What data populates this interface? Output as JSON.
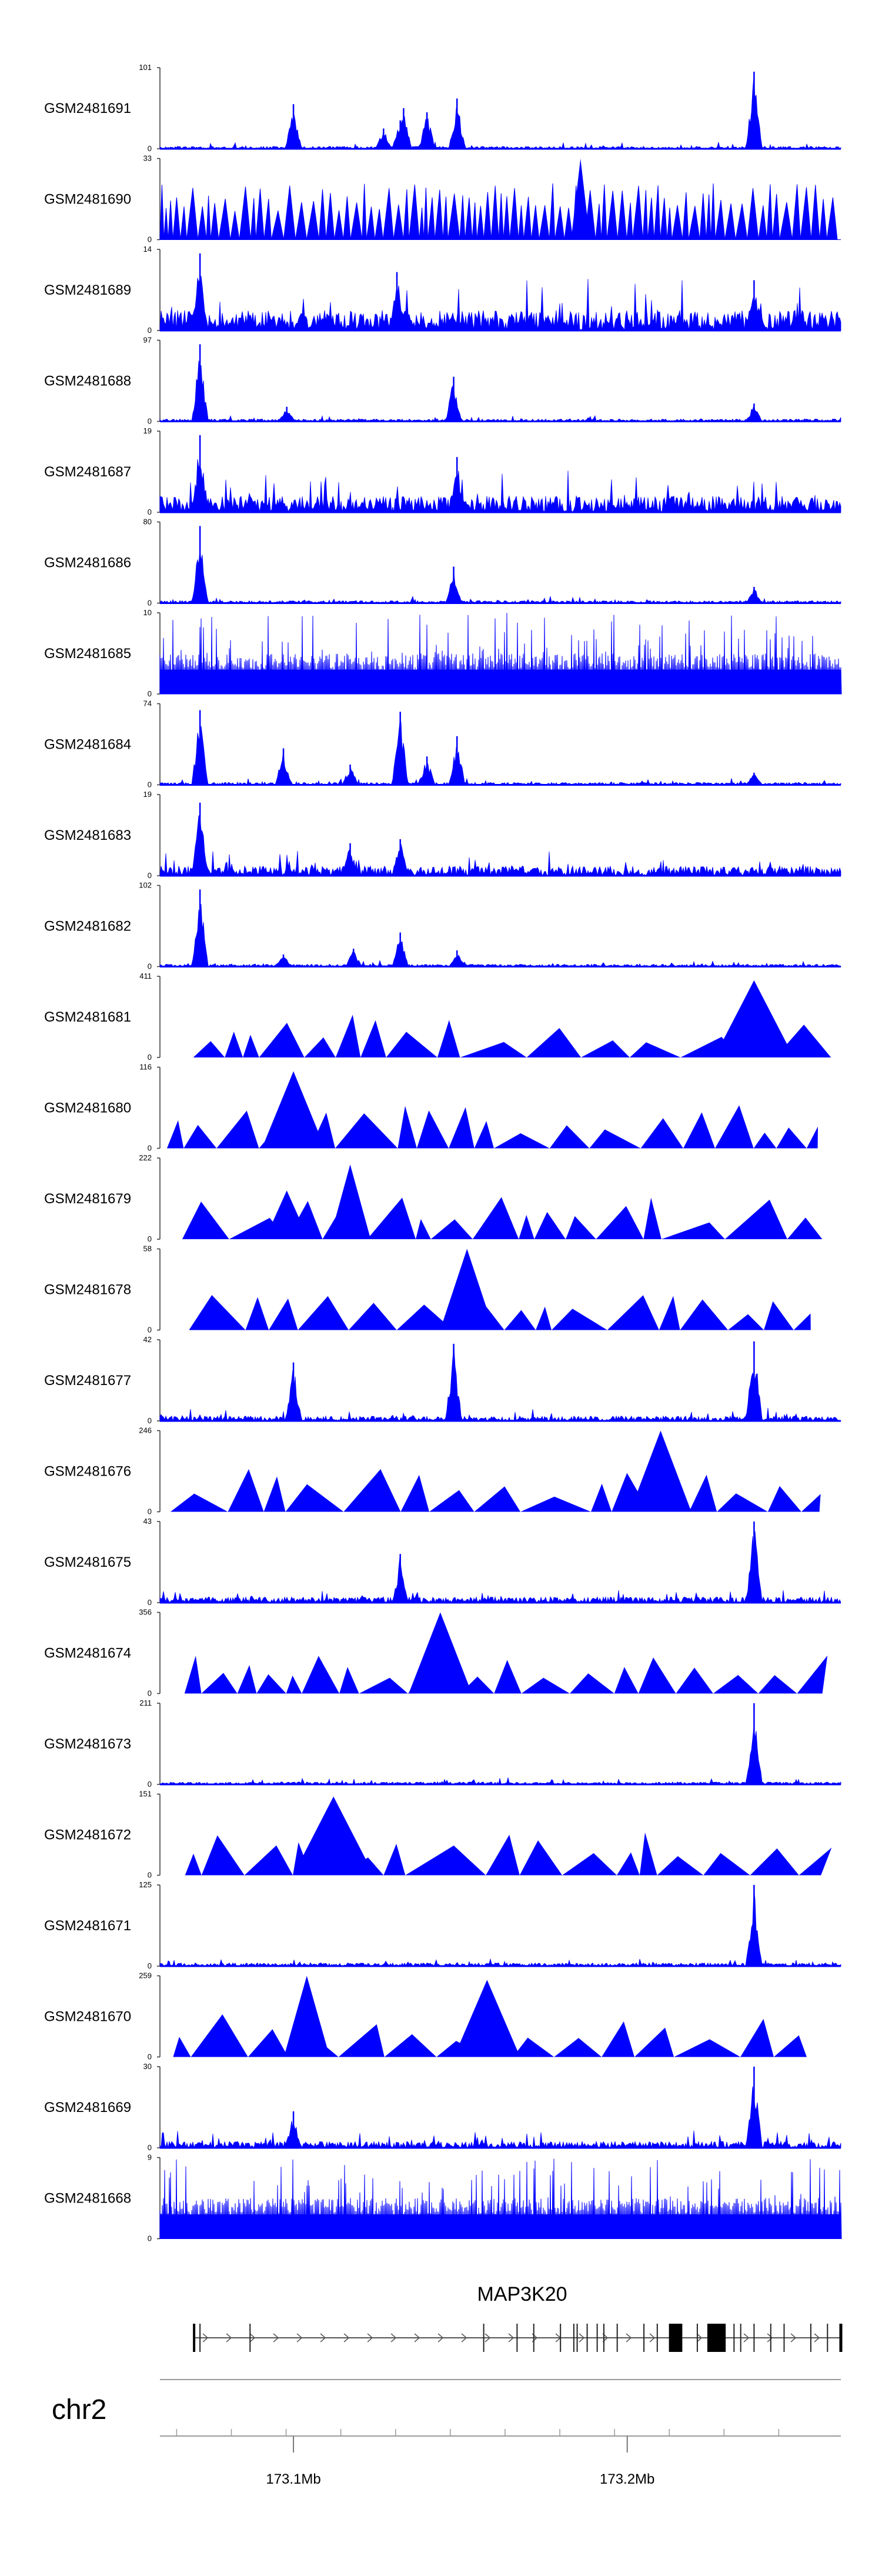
{
  "chart_data": {
    "type": "area",
    "chromosome": "chr2",
    "x_range_mb": [
      173.06,
      173.264
    ],
    "x_ticks": [
      {
        "value": 173.1,
        "label": "173.1Mb"
      },
      {
        "value": 173.2,
        "label": "173.2Mb"
      }
    ],
    "gene": {
      "name": "MAP3K20",
      "start_mb": 173.072,
      "end_mb": 173.264,
      "exons_mb": [
        173.072,
        173.087,
        173.157,
        173.167,
        173.172,
        173.18,
        173.184,
        173.185,
        173.188,
        173.191,
        173.193,
        173.197,
        173.205,
        173.209,
        173.213,
        173.221,
        173.226,
        173.232,
        173.234,
        173.238,
        173.243,
        173.247,
        173.255,
        173.26,
        173.264
      ],
      "big_exons_mb": [
        [
          173.2125,
          173.2165
        ],
        [
          173.224,
          173.2295
        ]
      ]
    },
    "color": "#0000ff",
    "tracks": [
      {
        "name": "GSM2481691",
        "ymax": "101",
        "peaks": [
          [
            173.1,
            0.55
          ],
          [
            173.127,
            0.25
          ],
          [
            173.132,
            0.35
          ],
          [
            173.133,
            0.5
          ],
          [
            173.14,
            0.45
          ],
          [
            173.149,
            0.62
          ],
          [
            173.238,
            0.95
          ]
        ]
      },
      {
        "name": "GSM2481690",
        "ymax": "33",
        "peaks": [
          [
            173.186,
            1.0
          ]
        ]
      },
      {
        "name": "GSM2481689",
        "ymax": "14",
        "peaks": [
          [
            173.072,
            0.95
          ],
          [
            173.131,
            0.72
          ],
          [
            173.238,
            0.62
          ]
        ]
      },
      {
        "name": "GSM2481688",
        "ymax": "97",
        "peaks": [
          [
            173.072,
            0.95
          ],
          [
            173.098,
            0.18
          ],
          [
            173.148,
            0.55
          ],
          [
            173.238,
            0.22
          ]
        ]
      },
      {
        "name": "GSM2481687",
        "ymax": "19",
        "peaks": [
          [
            173.072,
            0.95
          ],
          [
            173.149,
            0.68
          ]
        ]
      },
      {
        "name": "GSM2481686",
        "ymax": "80",
        "peaks": [
          [
            173.072,
            0.95
          ],
          [
            173.148,
            0.45
          ],
          [
            173.238,
            0.2
          ]
        ]
      },
      {
        "name": "GSM2481685",
        "ymax": "10",
        "peaks": []
      },
      {
        "name": "GSM2481684",
        "ymax": "74",
        "peaks": [
          [
            173.072,
            0.92
          ],
          [
            173.097,
            0.45
          ],
          [
            173.117,
            0.25
          ],
          [
            173.132,
            0.9
          ],
          [
            173.14,
            0.35
          ],
          [
            173.149,
            0.6
          ],
          [
            173.238,
            0.15
          ]
        ]
      },
      {
        "name": "GSM2481683",
        "ymax": "19",
        "peaks": [
          [
            173.072,
            0.9
          ],
          [
            173.117,
            0.4
          ],
          [
            173.132,
            0.45
          ]
        ]
      },
      {
        "name": "GSM2481682",
        "ymax": "102",
        "peaks": [
          [
            173.072,
            0.95
          ],
          [
            173.097,
            0.15
          ],
          [
            173.118,
            0.22
          ],
          [
            173.132,
            0.42
          ],
          [
            173.149,
            0.2
          ]
        ]
      },
      {
        "name": "GSM2481681",
        "ymax": "411",
        "peaks": [
          [
            173.238,
            0.95
          ]
        ]
      },
      {
        "name": "GSM2481680",
        "ymax": "116",
        "peaks": [
          [
            173.1,
            0.95
          ]
        ]
      },
      {
        "name": "GSM2481679",
        "ymax": "222",
        "peaks": [
          [
            173.098,
            0.6
          ],
          [
            173.117,
            0.92
          ]
        ]
      },
      {
        "name": "GSM2481678",
        "ymax": "58",
        "peaks": [
          [
            173.152,
            1.0
          ]
        ]
      },
      {
        "name": "GSM2481677",
        "ymax": "42",
        "peaks": [
          [
            173.1,
            0.72
          ],
          [
            173.148,
            0.95
          ],
          [
            173.238,
            0.98
          ]
        ]
      },
      {
        "name": "GSM2481676",
        "ymax": "246",
        "peaks": [
          [
            173.21,
            1.0
          ]
        ]
      },
      {
        "name": "GSM2481675",
        "ymax": "43",
        "peaks": [
          [
            173.132,
            0.6
          ],
          [
            173.238,
            1.0
          ]
        ]
      },
      {
        "name": "GSM2481674",
        "ymax": "356",
        "peaks": [
          [
            173.144,
            1.0
          ]
        ]
      },
      {
        "name": "GSM2481673",
        "ymax": "211",
        "peaks": [
          [
            173.238,
            1.0
          ]
        ]
      },
      {
        "name": "GSM2481672",
        "ymax": "151",
        "peaks": [
          [
            173.112,
            0.97
          ]
        ]
      },
      {
        "name": "GSM2481671",
        "ymax": "125",
        "peaks": [
          [
            173.238,
            1.0
          ]
        ]
      },
      {
        "name": "GSM2481670",
        "ymax": "259",
        "peaks": [
          [
            173.104,
            1.0
          ],
          [
            173.158,
            0.95
          ]
        ]
      },
      {
        "name": "GSM2481669",
        "ymax": "30",
        "peaks": [
          [
            173.1,
            0.45
          ],
          [
            173.238,
            1.0
          ]
        ]
      },
      {
        "name": "GSM2481668",
        "ymax": "9",
        "peaks": []
      }
    ]
  }
}
